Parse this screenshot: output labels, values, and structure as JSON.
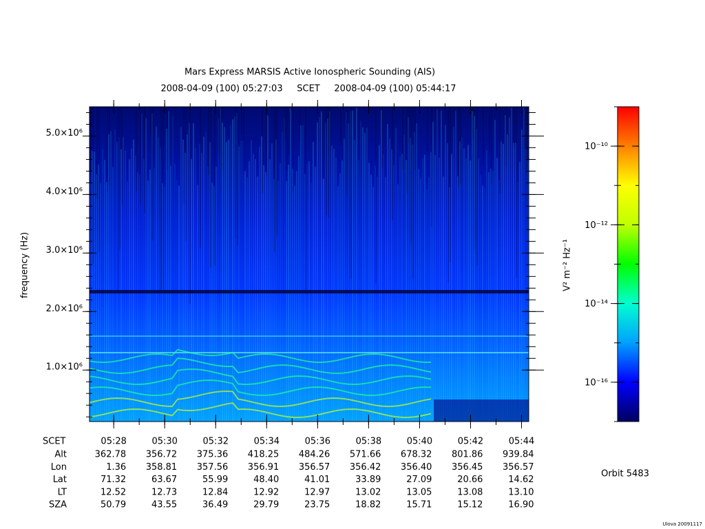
{
  "chart_data": {
    "type": "spectrogram",
    "title": "Mars Express MARSIS Active Ionospheric Sounding (AIS)",
    "subtitle": "2008-04-09 (100) 05:27:03     SCET     2008-04-09 (100) 05:44:17",
    "y_label": "frequency (Hz)",
    "xlim": [
      "05:27:03",
      "05:44:17"
    ],
    "xticks": [
      "05:28",
      "05:30",
      "05:32",
      "05:34",
      "05:36",
      "05:38",
      "05:40",
      "05:42",
      "05:44"
    ],
    "ylim": [
      120000,
      5500000
    ],
    "yticks": [
      {
        "value": 1000000,
        "label": "1.0×10⁶"
      },
      {
        "value": 2000000,
        "label": "2.0×10⁶"
      },
      {
        "value": 3000000,
        "label": "3.0×10⁶"
      },
      {
        "value": 4000000,
        "label": "4.0×10⁶"
      },
      {
        "value": 5000000,
        "label": "5.0×10⁶"
      }
    ],
    "colorbar": {
      "label": "V² m⁻² Hz⁻¹",
      "log_scale": true,
      "clim": [
        1e-17,
        1e-09
      ],
      "ticks": [
        {
          "value": 1e-10,
          "label": "10⁻¹⁰"
        },
        {
          "value": 1e-12,
          "label": "10⁻¹²"
        },
        {
          "value": 1e-14,
          "label": "10⁻¹⁴"
        },
        {
          "value": 1e-16,
          "label": "10⁻¹⁶"
        }
      ],
      "colors": [
        "#000060",
        "#0000ff",
        "#00a0ff",
        "#00ffd0",
        "#00ff00",
        "#c0ff00",
        "#ffff00",
        "#ff8000",
        "#ff0000"
      ]
    },
    "ephemeris": {
      "time_label": "SCET",
      "rows": [
        {
          "name": "Alt",
          "values": [
            "362.78",
            "356.72",
            "375.36",
            "418.25",
            "484.26",
            "571.66",
            "678.32",
            "801.86",
            "939.84"
          ]
        },
        {
          "name": "Lon",
          "values": [
            "1.36",
            "358.81",
            "357.56",
            "356.91",
            "356.57",
            "356.42",
            "356.40",
            "356.45",
            "356.57"
          ]
        },
        {
          "name": "Lat",
          "values": [
            "71.32",
            "63.67",
            "55.99",
            "48.40",
            "41.01",
            "33.89",
            "27.09",
            "20.66",
            "14.62"
          ]
        },
        {
          "name": "LT",
          "values": [
            "12.52",
            "12.73",
            "12.84",
            "12.92",
            "12.97",
            "13.02",
            "13.05",
            "13.08",
            "13.10"
          ]
        },
        {
          "name": "SZA",
          "values": [
            "50.79",
            "43.55",
            "36.49",
            "29.79",
            "23.75",
            "18.82",
            "15.71",
            "15.12",
            "16.90"
          ]
        }
      ]
    },
    "orbit": "Orbit 5483",
    "footer": "Ulova 20091117"
  }
}
